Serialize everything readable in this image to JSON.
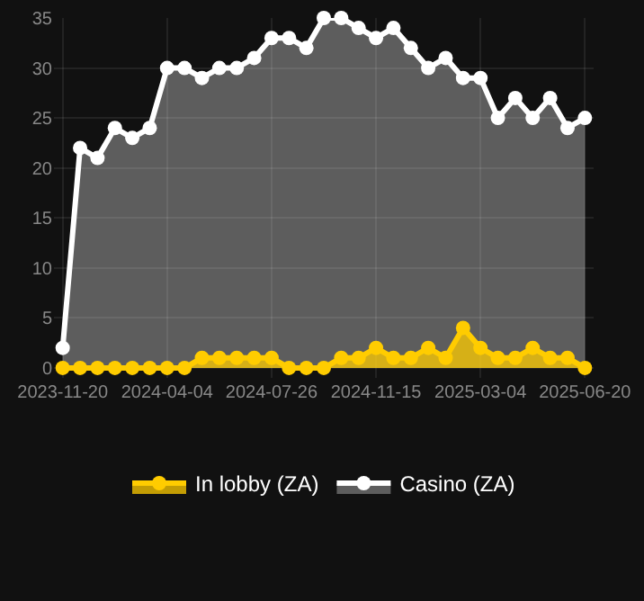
{
  "chart_data": {
    "type": "area",
    "categories": [
      "2023-11-20",
      null,
      null,
      null,
      null,
      null,
      "2024-04-04",
      null,
      null,
      null,
      null,
      null,
      "2024-07-26",
      null,
      null,
      null,
      null,
      null,
      "2024-11-15",
      null,
      null,
      null,
      null,
      null,
      "2025-03-04",
      null,
      null,
      null,
      null,
      null,
      "2025-06-20"
    ],
    "series": [
      {
        "name": "In lobby (ZA)",
        "color": "#ffcc00",
        "values": [
          0,
          0,
          0,
          0,
          0,
          0,
          0,
          0,
          1,
          1,
          1,
          1,
          1,
          0,
          0,
          0,
          1,
          1,
          2,
          1,
          1,
          2,
          1,
          4,
          2,
          1,
          1,
          2,
          1,
          1,
          0
        ]
      },
      {
        "name": "Casino (ZA)",
        "color": "#ffffff",
        "values": [
          2,
          22,
          21,
          24,
          23,
          24,
          30,
          30,
          29,
          30,
          30,
          31,
          33,
          33,
          32,
          35,
          35,
          34,
          33,
          34,
          32,
          30,
          31,
          29,
          29,
          25,
          27,
          25,
          27,
          24,
          25
        ]
      }
    ],
    "ylim": [
      -1,
      35
    ],
    "yticks": [
      0,
      5,
      10,
      15,
      20,
      25,
      30,
      35
    ],
    "grid": true,
    "legend": "bottom",
    "marker": "circle",
    "line_style": "solid"
  }
}
